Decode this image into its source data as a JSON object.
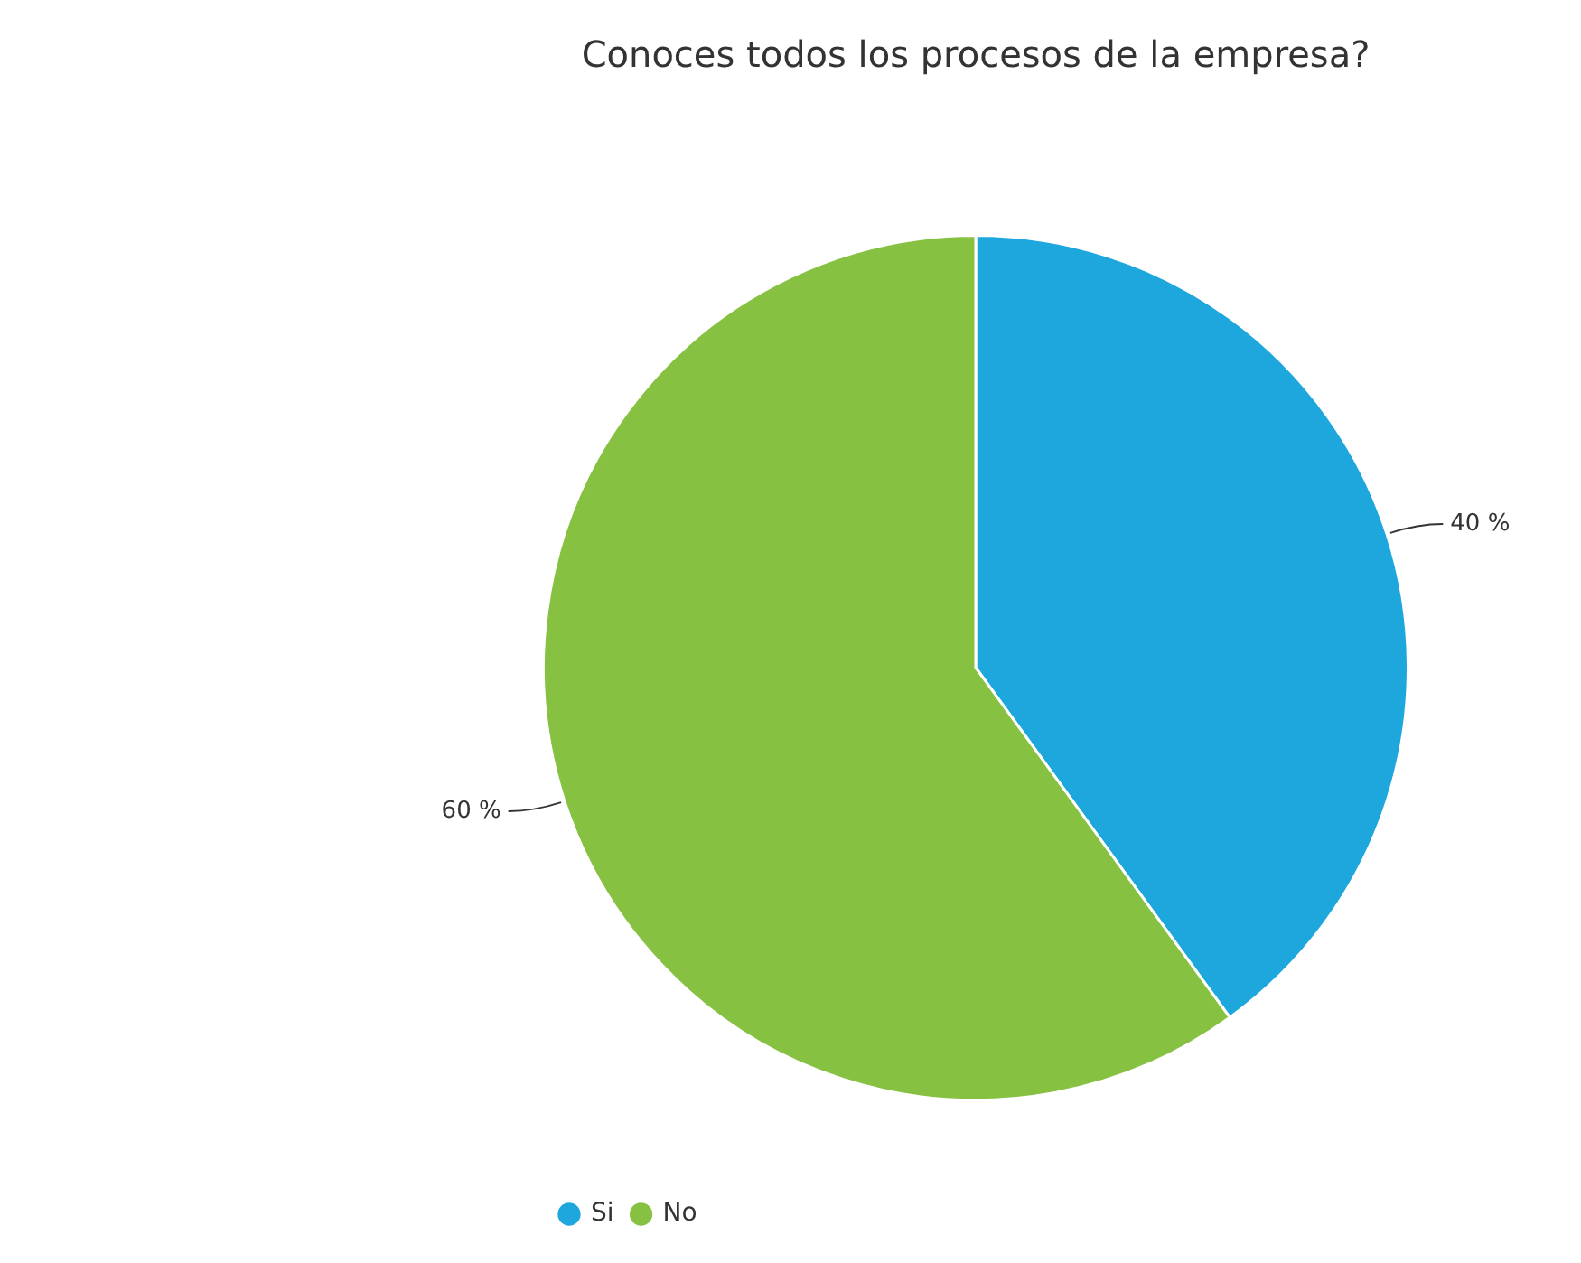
{
  "chart_data": {
    "type": "pie",
    "title": "Conoces todos los procesos de la empresa?",
    "categories": [
      "Si",
      "No"
    ],
    "values": [
      40,
      60
    ],
    "colors": [
      "#1ea7dd",
      "#86c142"
    ],
    "value_labels": [
      "40 %",
      "60 %"
    ],
    "legend": "bottom left"
  }
}
